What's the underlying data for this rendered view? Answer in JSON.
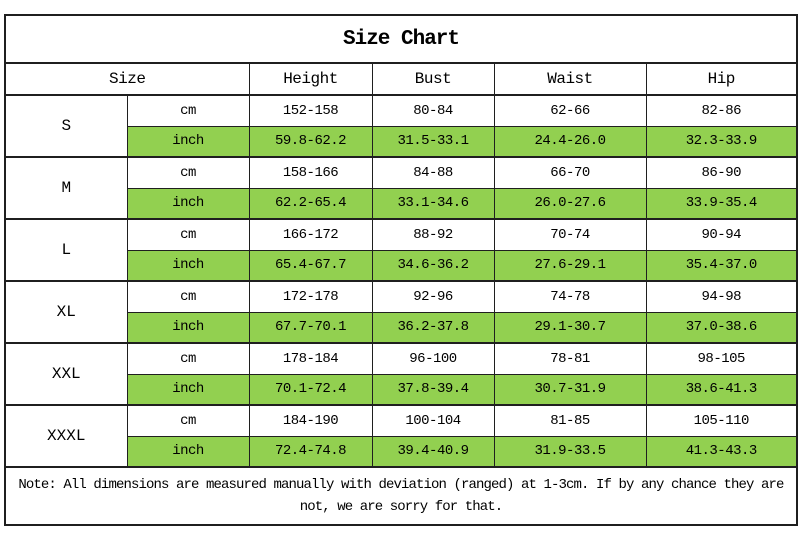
{
  "chart_data": {
    "type": "table",
    "title": "Size Chart",
    "header": [
      "Size",
      "Height",
      "Bust",
      "Waist",
      "Hip"
    ],
    "unit_labels": [
      "cm",
      "inch"
    ],
    "measure_keys": [
      "height",
      "bust",
      "waist",
      "hip"
    ],
    "sizes": [
      {
        "label": "S",
        "cm": [
          "152-158",
          "80-84",
          "62-66",
          "82-86"
        ],
        "inch": [
          "59.8-62.2",
          "31.5-33.1",
          "24.4-26.0",
          "32.3-33.9"
        ]
      },
      {
        "label": "M",
        "cm": [
          "158-166",
          "84-88",
          "66-70",
          "86-90"
        ],
        "inch": [
          "62.2-65.4",
          "33.1-34.6",
          "26.0-27.6",
          "33.9-35.4"
        ]
      },
      {
        "label": "L",
        "cm": [
          "166-172",
          "88-92",
          "70-74",
          "90-94"
        ],
        "inch": [
          "65.4-67.7",
          "34.6-36.2",
          "27.6-29.1",
          "35.4-37.0"
        ]
      },
      {
        "label": "XL",
        "cm": [
          "172-178",
          "92-96",
          "74-78",
          "94-98"
        ],
        "inch": [
          "67.7-70.1",
          "36.2-37.8",
          "29.1-30.7",
          "37.0-38.6"
        ]
      },
      {
        "label": "XXL",
        "cm": [
          "178-184",
          "96-100",
          "78-81",
          "98-105"
        ],
        "inch": [
          "70.1-72.4",
          "37.8-39.4",
          "30.7-31.9",
          "38.6-41.3"
        ]
      },
      {
        "label": "XXXL",
        "cm": [
          "184-190",
          "100-104",
          "81-85",
          "105-110"
        ],
        "inch": [
          "72.4-74.8",
          "39.4-40.9",
          "31.9-33.5",
          "41.3-43.3"
        ]
      }
    ],
    "note": "Note: All dimensions are measured manually with deviation (ranged) at 1-3cm. If by any chance they are not, we are sorry for that.",
    "layout_hints": {
      "highlighted_rows": "inch",
      "legend_position": "none",
      "grid": "on"
    }
  },
  "colors": {
    "highlight_green": "#92D050",
    "border_dark": "#1f1f1f",
    "border_light": "#5a5a5a",
    "text": "#000000",
    "background": "#ffffff"
  }
}
